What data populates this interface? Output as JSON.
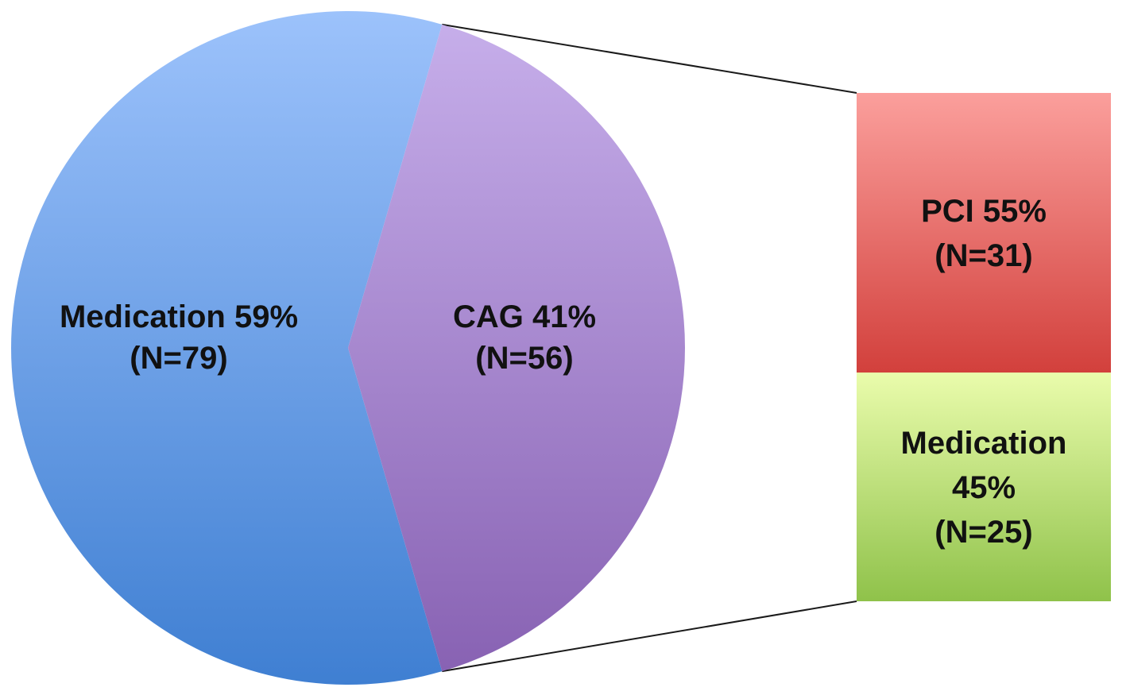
{
  "chart_data": {
    "type": "pie",
    "pie": {
      "slices": [
        {
          "name": "Medication",
          "percent": 59,
          "n": 79,
          "label_line1": "Medication  59%",
          "label_line2": "(N=79)",
          "color_top": "#9cc2fb",
          "color_bottom": "#3f7fd2"
        },
        {
          "name": "CAG",
          "percent": 41,
          "n": 56,
          "label_line1": "CAG 41%",
          "label_line2": "(N=56)",
          "color_top": "#c6aeea",
          "color_bottom": "#8862b3"
        }
      ]
    },
    "breakdown": {
      "of": "CAG",
      "type": "stacked_bar",
      "segments": [
        {
          "name": "PCI",
          "percent": 55,
          "n": 31,
          "label_lines": [
            "PCI 55%",
            "(N=31)"
          ],
          "color_top": "#fb9f9c",
          "color_bottom": "#d2403c"
        },
        {
          "name": "Medication",
          "percent": 45,
          "n": 25,
          "label_lines": [
            "Medication",
            "45%",
            "(N=25)"
          ],
          "color_top": "#eafcac",
          "color_bottom": "#8fc24a"
        }
      ]
    }
  }
}
